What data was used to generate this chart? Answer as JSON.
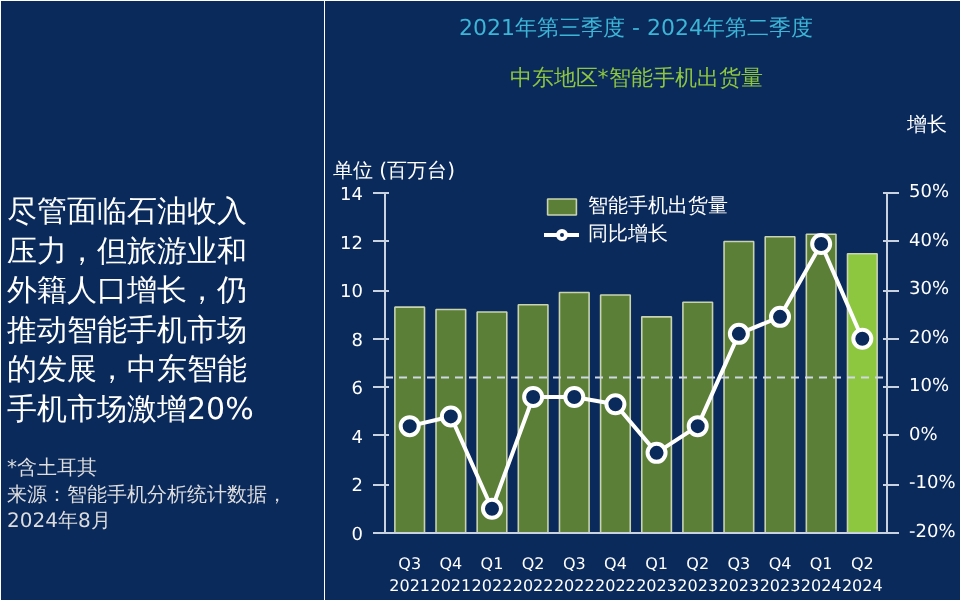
{
  "chart_data": {
    "type": "bar",
    "title": "2021年第三季度 - 2024年第二季度",
    "subtitle": "中东地区*智能手机出货量",
    "ylabel": "单位 (百万台)",
    "y2label": "增长",
    "categories": [
      "Q3 2021",
      "Q4 2021",
      "Q1 2022",
      "Q2 2022",
      "Q3 2022",
      "Q4 2022",
      "Q1 2023",
      "Q2 2023",
      "Q3 2023",
      "Q4 2023",
      "Q1 2024",
      "Q2 2024"
    ],
    "series": [
      {
        "name": "智能手机出货量",
        "colors": [
          "#5b7f36",
          "#5b7f36",
          "#5b7f36",
          "#5b7f36",
          "#5b7f36",
          "#5b7f36",
          "#5b7f36",
          "#5b7f36",
          "#5b7f36",
          "#5b7f36",
          "#5b7f36",
          "#8dc63f"
        ],
        "values": [
          9.3,
          9.2,
          9.1,
          9.4,
          9.9,
          9.8,
          8.9,
          9.5,
          12.0,
          12.2,
          12.3,
          11.5
        ]
      },
      {
        "name": "同比增长",
        "type": "line",
        "axis": "y2",
        "color": "#ffffff",
        "values": [
          2,
          4,
          -15,
          8,
          8,
          6.5,
          -3.5,
          2,
          21,
          24.5,
          39.5,
          20
        ]
      }
    ],
    "ylim": [
      0,
      14
    ],
    "yticks": [
      0,
      2,
      4,
      6,
      8,
      10,
      12,
      14
    ],
    "y2lim": [
      -20,
      50
    ],
    "y2ticks": [
      {
        "value": -20,
        "label": "-20%"
      },
      {
        "value": -10,
        "label": "-10%"
      },
      {
        "value": 0,
        "label": "0%"
      },
      {
        "value": 10,
        "label": "10%"
      },
      {
        "value": 20,
        "label": "20%"
      },
      {
        "value": 30,
        "label": "30%"
      },
      {
        "value": 40,
        "label": "40%"
      },
      {
        "value": 50,
        "label": "50%"
      }
    ],
    "ref_lines": [
      {
        "axis": "y2",
        "value": 12,
        "color": "#cfd8e3",
        "line_style": "dashed"
      }
    ],
    "marker": "circle",
    "line_style": "solid",
    "legend": "top",
    "grid": false,
    "annotations": [
      "尽管面临石油收入压力，但旅游业和外籍人口增长，仍推动智能手机市场的发展，中东智能手机市场激增20%",
      "*含土耳其",
      "来源：智能手机分析统计数据，2024年8月"
    ]
  }
}
